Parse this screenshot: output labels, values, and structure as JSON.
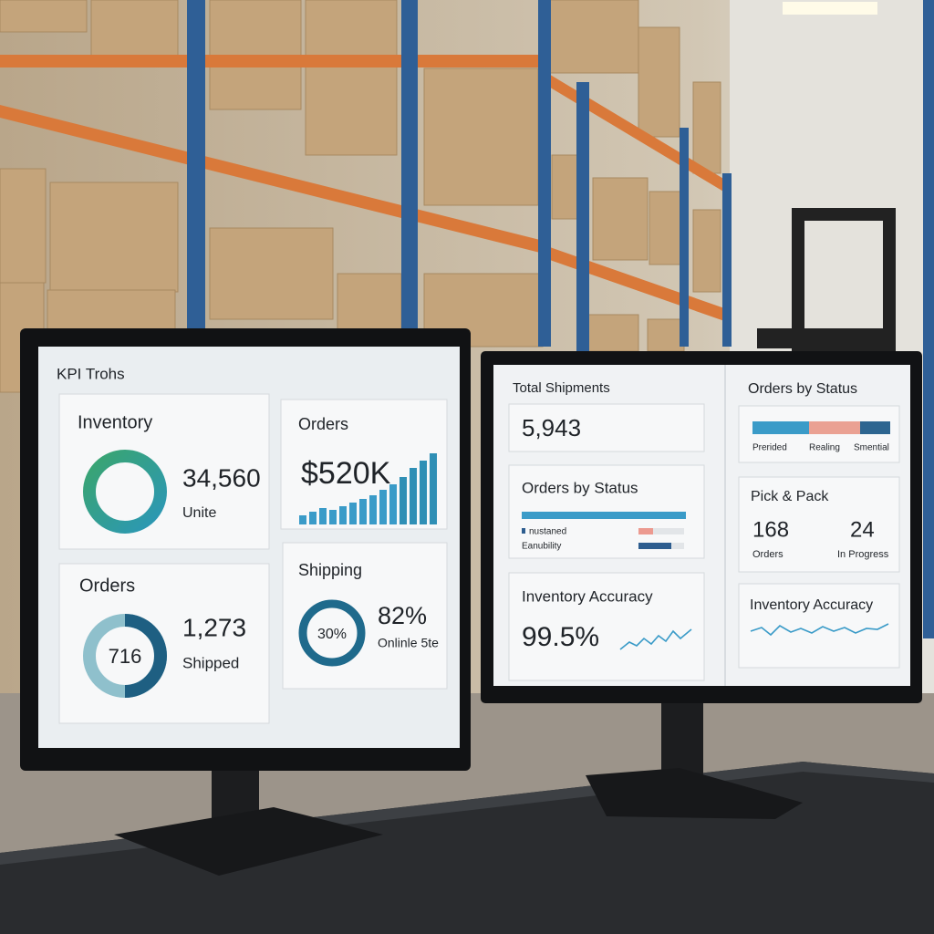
{
  "left_monitor": {
    "title": "KPI Trohs",
    "cards": [
      {
        "label": "Inventory",
        "value": "34,560",
        "unit": "Unite"
      },
      {
        "label": "Orders",
        "value": "$520K"
      },
      {
        "label": "Orders",
        "inner": "716",
        "value": "1,273",
        "unit": "Shipped"
      },
      {
        "label": "Shipping",
        "inner": "30%",
        "value": "82%",
        "unit": "Onlinle 5te"
      }
    ]
  },
  "right_monitor": {
    "left_column": [
      {
        "label": "Total Shipments",
        "value": "5,943"
      },
      {
        "label": "Orders by Status",
        "legend": [
          "nustaned",
          "Eanubility"
        ]
      },
      {
        "label": "Inventory Accuracy",
        "value": "99.5%"
      }
    ],
    "right_column": [
      {
        "label": "Orders by Status",
        "legend": [
          "Prerided",
          "Realing",
          "Smential"
        ]
      },
      {
        "label": "Pick & Pack",
        "stats": [
          {
            "value": "168",
            "label": "Orders"
          },
          {
            "value": "24",
            "label": "In Progress"
          }
        ]
      },
      {
        "label": "Inventory Accuracy"
      }
    ]
  }
}
